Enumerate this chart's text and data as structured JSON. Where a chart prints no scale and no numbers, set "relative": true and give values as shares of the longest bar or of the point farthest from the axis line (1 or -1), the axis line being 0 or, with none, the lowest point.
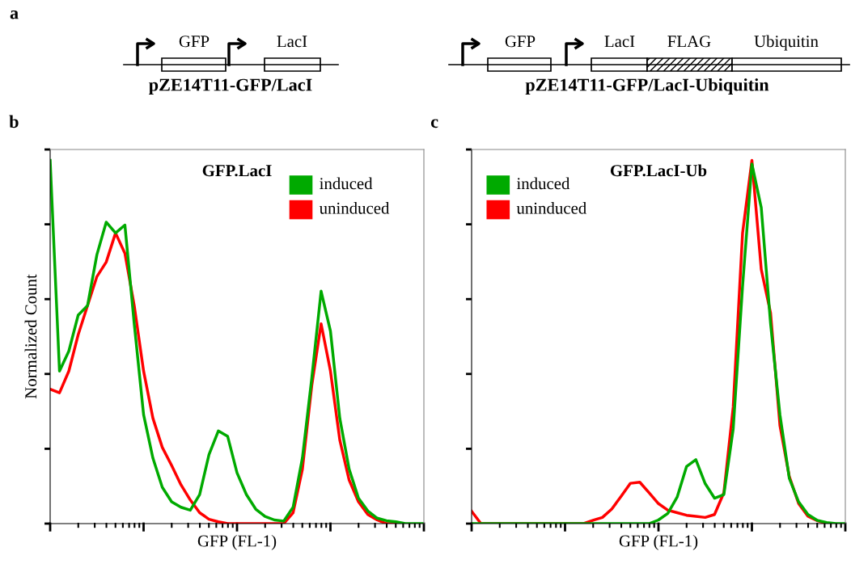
{
  "chart_data": [
    {
      "type": "other",
      "title": "a",
      "annotations": [
        "GFP",
        "LacI",
        "pZE14T11-GFP/LacI",
        "GFP",
        "LacI",
        "FLAG",
        "Ubiquitin",
        "pZE14T11-GFP/LacI-Ubiquitin"
      ]
    },
    {
      "type": "line",
      "title": "GFP.LacI",
      "annotations": [
        "b"
      ],
      "xlabel": "GFP (FL-1)",
      "ylabel": "Normalized Count",
      "relative": true,
      "legend": "top right",
      "tick_labels": false,
      "categories": [
        null,
        null,
        null,
        null,
        null,
        null,
        null,
        null,
        null,
        null,
        null,
        null,
        null,
        null,
        null,
        null,
        null,
        null,
        null,
        null,
        null,
        null,
        null,
        null,
        null,
        null,
        null,
        null,
        null,
        null,
        null,
        null,
        null,
        null,
        null,
        null,
        null,
        null,
        null,
        null,
        null
      ],
      "series": [
        {
          "name": "uninduced",
          "color": "#ff0000",
          "values": [
            0.37,
            0.36,
            0.42,
            0.52,
            0.6,
            0.68,
            0.72,
            0.8,
            0.744,
            0.6,
            0.42,
            0.29,
            0.21,
            0.16,
            0.107,
            0.065,
            0.03,
            0.012,
            0.005,
            0,
            0,
            0,
            0,
            0,
            0,
            0,
            0.03,
            0.15,
            0.38,
            0.55,
            0.42,
            0.23,
            0.12,
            0.06,
            0.025,
            0.01,
            0,
            0,
            null,
            null,
            null
          ]
        },
        {
          "name": "induced",
          "color": "#00aa00",
          "values": [
            1.0,
            0.42,
            0.475,
            0.574,
            0.6,
            0.74,
            0.83,
            0.8,
            0.822,
            0.55,
            0.3,
            0.18,
            0.1,
            0.06,
            0.045,
            0.037,
            0.08,
            0.19,
            0.255,
            0.24,
            0.14,
            0.08,
            0.04,
            0.02,
            0.01,
            0.007,
            0.045,
            0.181,
            0.4,
            0.64,
            0.53,
            0.29,
            0.15,
            0.07,
            0.035,
            0.015,
            0.008,
            0.005,
            0,
            0,
            0
          ]
        }
      ]
    },
    {
      "type": "line",
      "title": "GFP.LacI-Ub",
      "annotations": [
        "c"
      ],
      "xlabel": "GFP (FL-1)",
      "relative": true,
      "legend": "top left",
      "tick_labels": false,
      "categories": [
        null,
        null,
        null,
        null,
        null,
        null,
        null,
        null,
        null,
        null,
        null,
        null,
        null,
        null,
        null,
        null,
        null,
        null,
        null,
        null,
        null,
        null,
        null,
        null,
        null,
        null,
        null,
        null,
        null,
        null,
        null,
        null,
        null,
        null,
        null,
        null,
        null,
        null,
        null,
        null,
        null
      ],
      "series": [
        {
          "name": "uninduced",
          "color": "#ff0000",
          "values": [
            0.034,
            0,
            0,
            0,
            0,
            0,
            0,
            0,
            0,
            0,
            0,
            0,
            0,
            0.009,
            0.017,
            0.04,
            0.075,
            0.111,
            0.114,
            0.085,
            0.055,
            0.037,
            0.03,
            0.023,
            0.02,
            0.017,
            0.025,
            0.085,
            0.321,
            0.8,
            1.0,
            0.7,
            0.58,
            0.27,
            0.13,
            0.055,
            0.02,
            0.008,
            0,
            null,
            null
          ]
        },
        {
          "name": "induced",
          "color": "#00aa00",
          "values": [
            0,
            0,
            0,
            0,
            0,
            0,
            0,
            0,
            0,
            0,
            0,
            0,
            0,
            0,
            0,
            0,
            0,
            0,
            0,
            0,
            0.01,
            0.028,
            0.073,
            0.157,
            0.176,
            0.11,
            0.07,
            0.08,
            0.261,
            0.654,
            0.99,
            0.87,
            0.55,
            0.3,
            0.125,
            0.06,
            0.025,
            0.009,
            0.003,
            0,
            0
          ]
        }
      ]
    }
  ]
}
